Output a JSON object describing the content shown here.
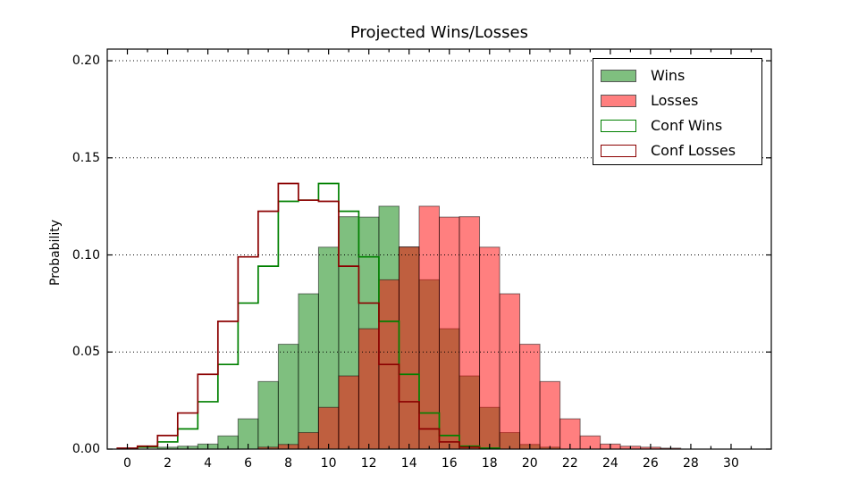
{
  "figure": {
    "title": "Projected Wins/Losses",
    "ylabel": "Probability",
    "background": "#ffffff"
  },
  "axes": {
    "xlim": [
      -1,
      32
    ],
    "ylim": [
      0,
      0.206
    ],
    "xticks": {
      "major": [
        0,
        2,
        4,
        6,
        8,
        10,
        12,
        14,
        16,
        18,
        20,
        22,
        24,
        26,
        28,
        30
      ],
      "minor": [
        1,
        3,
        5,
        7,
        9,
        11,
        13,
        15,
        17,
        19,
        21,
        23,
        25,
        27,
        29,
        31
      ]
    },
    "yticks": [
      {
        "value": 0.0,
        "label": "0.00"
      },
      {
        "value": 0.05,
        "label": "0.05"
      },
      {
        "value": 0.1,
        "label": "0.10"
      },
      {
        "value": 0.15,
        "label": "0.15"
      },
      {
        "value": 0.2,
        "label": "0.20"
      }
    ],
    "grid": {
      "orientation": "horizontal",
      "linestyle": "dotted",
      "color": "#000000"
    }
  },
  "legend": {
    "position": "upper-right",
    "items": [
      {
        "label": "Wins",
        "swatch_fill": "#7fbf7f",
        "swatch_edge": "#595959"
      },
      {
        "label": "Losses",
        "swatch_fill": "#ff7f7f",
        "swatch_edge": "#595959"
      },
      {
        "label": "Conf Wins",
        "swatch_fill": "#ffffff",
        "swatch_edge": "#008000"
      },
      {
        "label": "Conf Losses",
        "swatch_fill": "#ffffff",
        "swatch_edge": "#8b0000"
      }
    ]
  },
  "chart_data": {
    "type": "bar",
    "subtype": "histogram",
    "title": "Projected Wins/Losses",
    "xlabel": "",
    "ylabel": "Probability",
    "xlim": [
      -1,
      32
    ],
    "ylim": [
      0,
      0.206
    ],
    "bin_width": 1,
    "bin_centers": [
      0,
      1,
      2,
      3,
      4,
      5,
      6,
      7,
      8,
      9,
      10,
      11,
      12,
      13,
      14,
      15,
      16,
      17,
      18,
      19,
      20,
      21,
      22,
      23,
      24,
      25,
      26,
      27,
      28,
      29,
      30,
      31
    ],
    "series": [
      {
        "name": "Wins",
        "style": "stepfilled",
        "color": "#008000",
        "alpha": 0.5,
        "edge": "#000000",
        "values": [
          0,
          0,
          0.001,
          0.0015,
          0.0026,
          0.0068,
          0.0156,
          0.0348,
          0.054,
          0.08,
          0.104,
          0.1197,
          0.1195,
          0.1251,
          0.1041,
          0.0872,
          0.062,
          0.0377,
          0.0215,
          0.0085,
          0.0024,
          0.001,
          0,
          0,
          0,
          0,
          0,
          0,
          0,
          0,
          0,
          0
        ]
      },
      {
        "name": "Losses",
        "style": "stepfilled",
        "color": "#ff0000",
        "alpha": 0.5,
        "edge": "#000000",
        "values": [
          0,
          0,
          0,
          0,
          0,
          0,
          0,
          0.001,
          0.0024,
          0.0085,
          0.0215,
          0.0377,
          0.062,
          0.0872,
          0.1041,
          0.1251,
          0.1195,
          0.1197,
          0.104,
          0.08,
          0.054,
          0.0348,
          0.0156,
          0.0068,
          0.0026,
          0.0015,
          0.001,
          0.0005,
          0,
          0,
          0,
          0
        ]
      },
      {
        "name": "Conf Wins",
        "style": "step",
        "color": "#008000",
        "alpha": 1,
        "linewidth": 1.7,
        "values": [
          0,
          0.001,
          0.0037,
          0.0104,
          0.0244,
          0.0436,
          0.0752,
          0.0942,
          0.1276,
          0.1282,
          0.1368,
          0.1225,
          0.099,
          0.0658,
          0.0385,
          0.0186,
          0.007,
          0.0015,
          0.0005,
          0,
          0,
          0,
          0,
          0,
          0,
          0,
          0,
          0,
          0,
          0,
          0,
          0
        ]
      },
      {
        "name": "Conf Losses",
        "style": "step",
        "color": "#8b0000",
        "alpha": 1,
        "linewidth": 1.7,
        "values": [
          0.0005,
          0.0015,
          0.007,
          0.0186,
          0.0385,
          0.0658,
          0.099,
          0.1225,
          0.1368,
          0.1282,
          0.1276,
          0.0942,
          0.0752,
          0.0436,
          0.0244,
          0.0104,
          0.0037,
          0.001,
          0,
          0,
          0,
          0,
          0,
          0,
          0,
          0,
          0,
          0,
          0,
          0,
          0,
          0
        ]
      }
    ]
  }
}
